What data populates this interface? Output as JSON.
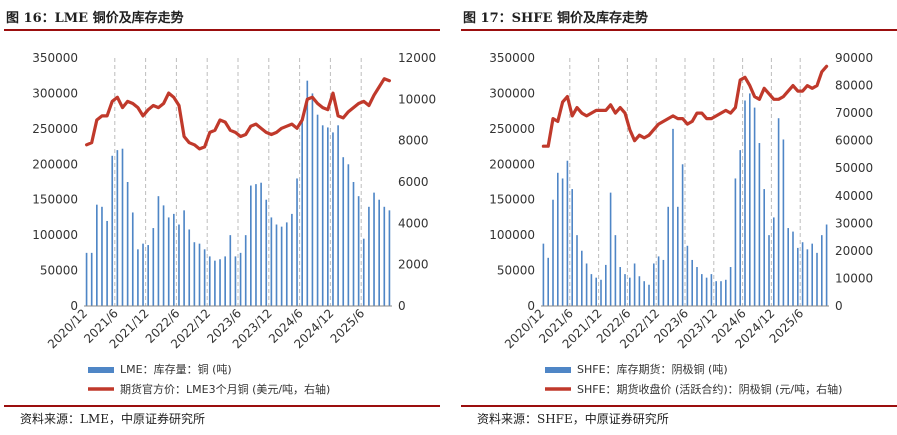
{
  "colors": {
    "bar": "#4f86c6",
    "line": "#c0392b",
    "rule": "#9b0e0e",
    "grid": "#bdbdbd"
  },
  "panels": [
    {
      "title": "图 16：LME 铜价及库存走势",
      "source": "资料来源：LME，中原证券研究所"
    },
    {
      "title": "图 17：SHFE 铜价及库存走势",
      "source": "资料来源：SHFE，中原证券研究所"
    }
  ],
  "chart_data": [
    {
      "type": "bar+line",
      "title": "图 16：LME 铜价及库存走势",
      "x_tick_labels": [
        "2020/12",
        "2021/6",
        "2021/12",
        "2022/6",
        "2022/12",
        "2023/6",
        "2023/12",
        "2024/6",
        "2024/12",
        "2025/6"
      ],
      "y_left": {
        "min": 0,
        "max": 350000,
        "ticks": [
          0,
          50000,
          100000,
          150000,
          200000,
          250000,
          300000,
          350000
        ],
        "tick_labels": [
          "0",
          "50000",
          "100000",
          "150000",
          "200000",
          "250000",
          "300000",
          "350000"
        ]
      },
      "y_right": {
        "min": 0,
        "max": 12000,
        "ticks": [
          0,
          2000,
          4000,
          6000,
          8000,
          10000,
          12000
        ],
        "tick_labels": [
          "0",
          "2000",
          "4000",
          "6000",
          "8000",
          "10000",
          "12000"
        ]
      },
      "series": [
        {
          "name": "LME：库存量：铜 (吨)",
          "kind": "bar",
          "axis": "left",
          "values": [
            75000,
            75000,
            143000,
            140000,
            120000,
            212000,
            220000,
            222000,
            175000,
            132000,
            80000,
            88000,
            86000,
            110000,
            155000,
            142000,
            125000,
            130000,
            115000,
            135000,
            108000,
            90000,
            88000,
            80000,
            70000,
            64000,
            66000,
            70000,
            100000,
            70000,
            75000,
            100000,
            170000,
            172000,
            174000,
            150000,
            125000,
            115000,
            112000,
            118000,
            130000,
            180000,
            260000,
            318000,
            300000,
            270000,
            255000,
            252000,
            245000,
            255000,
            210000,
            200000,
            175000,
            155000,
            95000,
            140000,
            160000,
            150000,
            140000,
            135000
          ]
        },
        {
          "name": "期货官方价：LME3个月铜 (美元/吨，右轴)",
          "kind": "line",
          "axis": "right",
          "values": [
            7800,
            7900,
            9000,
            9200,
            9200,
            9900,
            10100,
            9600,
            9900,
            9800,
            9600,
            9200,
            9500,
            9700,
            9600,
            9800,
            10300,
            10100,
            9700,
            8200,
            7900,
            7800,
            7600,
            7700,
            8400,
            8500,
            9000,
            8900,
            8500,
            8400,
            8200,
            8300,
            8700,
            8800,
            8600,
            8400,
            8300,
            8400,
            8600,
            8700,
            8800,
            8600,
            9000,
            10000,
            10100,
            9800,
            9600,
            9500,
            10300,
            9200,
            9100,
            9400,
            9600,
            9800,
            9900,
            9700,
            10200,
            10600,
            11000,
            10900
          ]
        }
      ],
      "legend": [
        "LME：库存量：铜 (吨)",
        "期货官方价：LME3个月铜 (美元/吨，右轴)"
      ]
    },
    {
      "type": "bar+line",
      "title": "图 17：SHFE 铜价及库存走势",
      "x_tick_labels": [
        "2020/12",
        "2021/6",
        "2021/12",
        "2022/6",
        "2022/12",
        "2023/6",
        "2023/12",
        "2024/6",
        "2024/12",
        "2025/6"
      ],
      "y_left": {
        "min": 0,
        "max": 350000,
        "ticks": [
          0,
          50000,
          100000,
          150000,
          200000,
          250000,
          300000,
          350000
        ],
        "tick_labels": [
          "0",
          "50000",
          "100000",
          "150000",
          "200000",
          "250000",
          "300000",
          "350000"
        ]
      },
      "y_right": {
        "min": 0,
        "max": 90000,
        "ticks": [
          0,
          10000,
          20000,
          30000,
          40000,
          50000,
          60000,
          70000,
          80000,
          90000
        ],
        "tick_labels": [
          "0",
          "10000",
          "20000",
          "30000",
          "40000",
          "50000",
          "60000",
          "70000",
          "80000",
          "90000"
        ]
      },
      "series": [
        {
          "name": "SHFE：库存期货：阴极铜 (吨)",
          "kind": "bar",
          "axis": "left",
          "values": [
            88000,
            68000,
            150000,
            188000,
            180000,
            205000,
            165000,
            100000,
            78000,
            60000,
            45000,
            40000,
            37000,
            58000,
            160000,
            100000,
            55000,
            45000,
            40000,
            60000,
            42000,
            35000,
            30000,
            60000,
            70000,
            65000,
            140000,
            250000,
            140000,
            200000,
            85000,
            65000,
            55000,
            45000,
            40000,
            45000,
            35000,
            35000,
            37000,
            55000,
            180000,
            220000,
            290000,
            300000,
            280000,
            230000,
            165000,
            100000,
            125000,
            265000,
            235000,
            110000,
            105000,
            82000,
            90000,
            80000,
            88000,
            75000,
            100000,
            115000
          ]
        },
        {
          "name": "SHFE：期货收盘价 (活跃合约)：阴极铜 (元/吨，右轴)",
          "kind": "line",
          "axis": "right",
          "values": [
            58000,
            58000,
            68000,
            67000,
            74000,
            76000,
            69000,
            72000,
            70000,
            69000,
            70000,
            71000,
            71000,
            71000,
            73000,
            70000,
            72000,
            70000,
            64000,
            60000,
            62000,
            61000,
            62000,
            64000,
            66000,
            67000,
            68000,
            69000,
            68000,
            68000,
            66000,
            67000,
            70000,
            70000,
            68000,
            68000,
            69000,
            70000,
            71000,
            70000,
            72000,
            82000,
            83000,
            80000,
            76000,
            75000,
            79000,
            77000,
            75000,
            75000,
            76000,
            78000,
            80000,
            78000,
            78000,
            80000,
            79000,
            80000,
            85000,
            87000
          ]
        }
      ],
      "legend": [
        "SHFE：库存期货：阴极铜 (吨)",
        "SHFE：期货收盘价 (活跃合约)：阴极铜 (元/吨，右轴)"
      ]
    }
  ]
}
